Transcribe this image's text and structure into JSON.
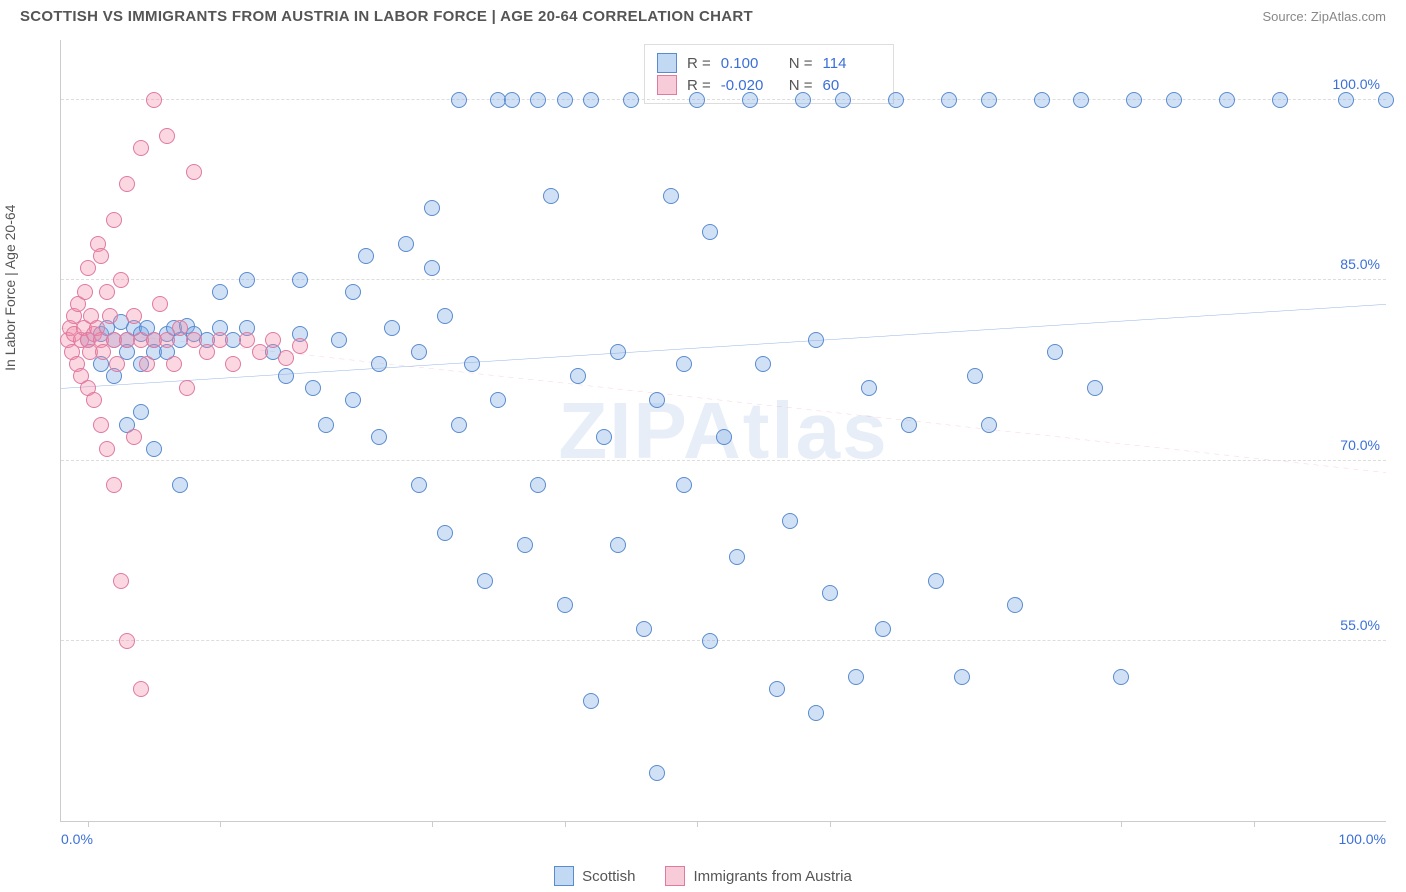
{
  "title": "SCOTTISH VS IMMIGRANTS FROM AUSTRIA IN LABOR FORCE | AGE 20-64 CORRELATION CHART",
  "source": "Source: ZipAtlas.com",
  "y_axis_label": "In Labor Force | Age 20-64",
  "watermark": "ZIPAtlas",
  "chart": {
    "type": "scatter",
    "xlim": [
      0,
      100
    ],
    "ylim": [
      40,
      105
    ],
    "x_tick_left": "0.0%",
    "x_tick_right": "100.0%",
    "x_tick_marks": [
      2,
      12,
      28,
      38,
      48,
      58,
      80,
      90
    ],
    "y_ticks": [
      {
        "v": 55,
        "label": "55.0%"
      },
      {
        "v": 70,
        "label": "70.0%"
      },
      {
        "v": 85,
        "label": "85.0%"
      },
      {
        "v": 100,
        "label": "100.0%"
      }
    ],
    "grid_color": "#dddddd",
    "background_color": "#ffffff",
    "point_radius": 8,
    "point_stroke_width": 1.2,
    "series": [
      {
        "name": "Scottish",
        "fill": "rgba(120,170,230,0.35)",
        "stroke": "#5a8bd0",
        "line_color": "#2f6fd0",
        "line_dash": "none",
        "line_width": 2.2,
        "trend": {
          "x1": 0,
          "y1": 76,
          "x2": 100,
          "y2": 83
        },
        "R": "0.100",
        "N": "114",
        "points": [
          [
            2,
            80
          ],
          [
            3,
            80.5
          ],
          [
            3.5,
            81
          ],
          [
            4,
            80
          ],
          [
            4.5,
            81.5
          ],
          [
            5,
            80
          ],
          [
            5.5,
            81
          ],
          [
            6,
            80.5
          ],
          [
            6.5,
            81
          ],
          [
            7,
            80
          ],
          [
            7,
            79
          ],
          [
            8,
            80.5
          ],
          [
            8.5,
            81
          ],
          [
            9,
            80
          ],
          [
            9.5,
            81.2
          ],
          [
            10,
            80.5
          ],
          [
            11,
            80
          ],
          [
            12,
            81
          ],
          [
            13,
            80
          ],
          [
            14,
            81
          ],
          [
            3,
            78
          ],
          [
            4,
            77
          ],
          [
            5,
            79
          ],
          [
            6,
            78
          ],
          [
            8,
            79
          ],
          [
            6,
            74
          ],
          [
            7,
            71
          ],
          [
            9,
            68
          ],
          [
            5,
            73
          ],
          [
            12,
            84
          ],
          [
            14,
            85
          ],
          [
            16,
            79
          ],
          [
            17,
            77
          ],
          [
            18,
            80.5
          ],
          [
            18,
            85
          ],
          [
            19,
            76
          ],
          [
            20,
            73
          ],
          [
            21,
            80
          ],
          [
            22,
            84
          ],
          [
            22,
            75
          ],
          [
            23,
            87
          ],
          [
            24,
            78
          ],
          [
            24,
            72
          ],
          [
            25,
            81
          ],
          [
            26,
            88
          ],
          [
            27,
            79
          ],
          [
            27,
            68
          ],
          [
            28,
            86
          ],
          [
            28,
            91
          ],
          [
            29,
            64
          ],
          [
            29,
            82
          ],
          [
            30,
            100
          ],
          [
            30,
            73
          ],
          [
            31,
            78
          ],
          [
            32,
            60
          ],
          [
            33,
            100
          ],
          [
            33,
            75
          ],
          [
            34,
            100
          ],
          [
            35,
            63
          ],
          [
            36,
            100
          ],
          [
            36,
            68
          ],
          [
            37,
            92
          ],
          [
            38,
            100
          ],
          [
            38,
            58
          ],
          [
            39,
            77
          ],
          [
            40,
            100
          ],
          [
            40,
            50
          ],
          [
            41,
            72
          ],
          [
            42,
            79
          ],
          [
            42,
            63
          ],
          [
            43,
            100
          ],
          [
            44,
            56
          ],
          [
            45,
            75
          ],
          [
            45,
            44
          ],
          [
            46,
            92
          ],
          [
            47,
            68
          ],
          [
            47,
            78
          ],
          [
            48,
            100
          ],
          [
            49,
            55
          ],
          [
            49,
            89
          ],
          [
            50,
            72
          ],
          [
            51,
            62
          ],
          [
            52,
            100
          ],
          [
            53,
            78
          ],
          [
            54,
            51
          ],
          [
            55,
            65
          ],
          [
            56,
            100
          ],
          [
            57,
            49
          ],
          [
            57,
            80
          ],
          [
            58,
            59
          ],
          [
            59,
            100
          ],
          [
            60,
            52
          ],
          [
            61,
            76
          ],
          [
            62,
            56
          ],
          [
            63,
            100
          ],
          [
            64,
            73
          ],
          [
            66,
            60
          ],
          [
            67,
            100
          ],
          [
            68,
            52
          ],
          [
            69,
            77
          ],
          [
            70,
            100
          ],
          [
            72,
            58
          ],
          [
            74,
            100
          ],
          [
            75,
            79
          ],
          [
            77,
            100
          ],
          [
            80,
            52
          ],
          [
            81,
            100
          ],
          [
            84,
            100
          ],
          [
            88,
            100
          ],
          [
            92,
            100
          ],
          [
            97,
            100
          ],
          [
            100,
            100
          ],
          [
            78,
            76
          ],
          [
            70,
            73
          ]
        ]
      },
      {
        "name": "Immigrants from Austria",
        "fill": "rgba(240,140,170,0.35)",
        "stroke": "#e07aa0",
        "line_color": "#e07aa0",
        "line_dash": "5,5",
        "line_width": 1.4,
        "trend": {
          "x1": 0,
          "y1": 81,
          "x2": 100,
          "y2": 69
        },
        "R": "-0.020",
        "N": "60",
        "points": [
          [
            0.5,
            80
          ],
          [
            0.7,
            81
          ],
          [
            0.8,
            79
          ],
          [
            1,
            80.5
          ],
          [
            1,
            82
          ],
          [
            1.2,
            78
          ],
          [
            1.3,
            83
          ],
          [
            1.5,
            80
          ],
          [
            1.5,
            77
          ],
          [
            1.7,
            81
          ],
          [
            1.8,
            84
          ],
          [
            2,
            80
          ],
          [
            2,
            76
          ],
          [
            2,
            86
          ],
          [
            2.2,
            79
          ],
          [
            2.3,
            82
          ],
          [
            2.5,
            80.5
          ],
          [
            2.5,
            75
          ],
          [
            2.7,
            81
          ],
          [
            2.8,
            88
          ],
          [
            3,
            80
          ],
          [
            3,
            73
          ],
          [
            3,
            87
          ],
          [
            3.2,
            79
          ],
          [
            3.5,
            84
          ],
          [
            3.5,
            71
          ],
          [
            3.7,
            82
          ],
          [
            4,
            80
          ],
          [
            4,
            90
          ],
          [
            4,
            68
          ],
          [
            4.2,
            78
          ],
          [
            4.5,
            85
          ],
          [
            4.5,
            60
          ],
          [
            5,
            80
          ],
          [
            5,
            93
          ],
          [
            5,
            55
          ],
          [
            5.5,
            82
          ],
          [
            5.5,
            72
          ],
          [
            6,
            80
          ],
          [
            6,
            96
          ],
          [
            6,
            51
          ],
          [
            6.5,
            78
          ],
          [
            7,
            80
          ],
          [
            7,
            100
          ],
          [
            7.5,
            83
          ],
          [
            8,
            80
          ],
          [
            8,
            97
          ],
          [
            8.5,
            78
          ],
          [
            9,
            81
          ],
          [
            9.5,
            76
          ],
          [
            10,
            80
          ],
          [
            10,
            94
          ],
          [
            11,
            79
          ],
          [
            12,
            80
          ],
          [
            13,
            78
          ],
          [
            14,
            80
          ],
          [
            15,
            79
          ],
          [
            16,
            80
          ],
          [
            17,
            78.5
          ],
          [
            18,
            79.5
          ]
        ]
      }
    ]
  },
  "legend_top": {
    "rows": [
      {
        "swatch_fill": "rgba(120,170,230,0.45)",
        "swatch_stroke": "#5a8bd0",
        "R_label": "R =",
        "R": "0.100",
        "N_label": "N =",
        "N": "114"
      },
      {
        "swatch_fill": "rgba(240,140,170,0.45)",
        "swatch_stroke": "#e07aa0",
        "R_label": "R =",
        "R": "-0.020",
        "N_label": "N =",
        "N": "60"
      }
    ]
  },
  "legend_bottom": {
    "items": [
      {
        "label": "Scottish",
        "fill": "rgba(120,170,230,0.45)",
        "stroke": "#5a8bd0"
      },
      {
        "label": "Immigrants from Austria",
        "fill": "rgba(240,140,170,0.45)",
        "stroke": "#e07aa0"
      }
    ]
  }
}
